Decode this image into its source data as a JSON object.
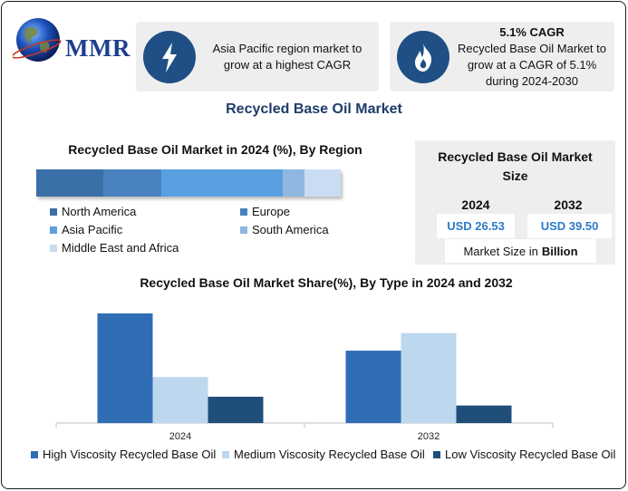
{
  "logo": {
    "text": "MMR",
    "icon": "globe-icon"
  },
  "info_cards": [
    {
      "icon": "lightning-bolt-icon",
      "lines": [
        "Asia Pacific region market to",
        "grow at a highest CAGR"
      ]
    },
    {
      "icon": "flame-icon",
      "heading": "5.1% CAGR",
      "lines": [
        "Recycled Base Oil Market to",
        "grow at a CAGR of 5.1%",
        "during 2024-2030"
      ]
    }
  ],
  "main_title": "Recycled Base Oil Market",
  "size_card": {
    "title_line1": "Recycled Base Oil Market",
    "title_line2": "Size",
    "years": [
      "2024",
      "2032"
    ],
    "values": [
      "USD 26.53",
      "USD 39.50"
    ],
    "footnote_prefix": "Market Size in",
    "footnote_unit": "Billion"
  },
  "colors": {
    "north_america": "#3b6fa8",
    "europe": "#4a82c0",
    "asia_pacific": "#5a9fe0",
    "south_america": "#8fb8e0",
    "middle_east_africa": "#c9dcf2",
    "high_viscosity": "#2f6eb5",
    "medium_viscosity": "#bdd7ee",
    "low_viscosity": "#1f4e79",
    "info_icon_bg": "#1f4f85",
    "value_text": "#2b7bc7"
  },
  "chart_data": [
    {
      "type": "bar",
      "orientation": "horizontal-stacked",
      "title": "Recycled Base Oil Market in 2024 (%), By Region",
      "categories": [
        "2024"
      ],
      "series": [
        {
          "name": "North America",
          "values": [
            22
          ]
        },
        {
          "name": "Europe",
          "values": [
            19
          ]
        },
        {
          "name": "Asia Pacific",
          "values": [
            40
          ]
        },
        {
          "name": "South America",
          "values": [
            7
          ]
        },
        {
          "name": "Middle East and Africa",
          "values": [
            12
          ]
        }
      ],
      "xlim": [
        0,
        100
      ],
      "grid": false,
      "legend": "bottom"
    },
    {
      "type": "bar",
      "title": "Recycled Base Oil Market Share(%), By Type in 2024 and 2032",
      "categories": [
        "2024",
        "2032"
      ],
      "series": [
        {
          "name": "High Viscosity Recycled Base Oil",
          "values": [
            50,
            33
          ]
        },
        {
          "name": "Medium Viscosity Recycled Base Oil",
          "values": [
            21,
            41
          ]
        },
        {
          "name": "Low Viscosity Recycled Base Oil",
          "values": [
            12,
            8
          ]
        }
      ],
      "ylim": [
        0,
        60
      ],
      "grid": false,
      "legend": "bottom"
    }
  ]
}
